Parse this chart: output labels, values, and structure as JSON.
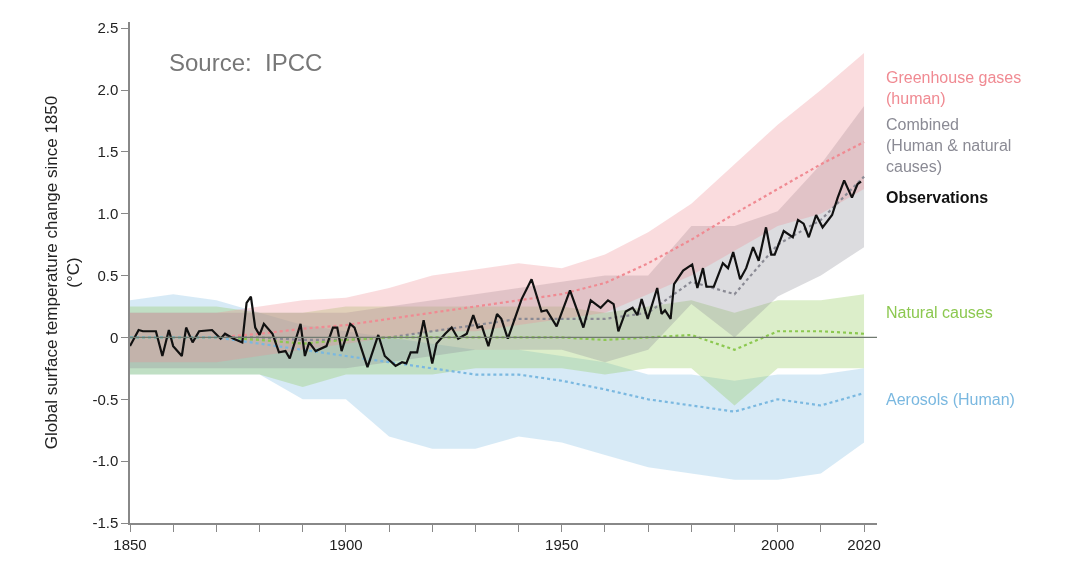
{
  "chart_data": {
    "type": "line",
    "ylabel": "Global surface temperature change since 1850\n(°C)",
    "annotations": [
      "Source:  IPCC"
    ],
    "xlim": [
      1850,
      2023
    ],
    "xticks": [
      1850,
      {
        "value": 1860,
        "label": null
      },
      {
        "value": 1870,
        "label": null
      },
      {
        "value": 1880,
        "label": null
      },
      {
        "value": 1890,
        "label": null
      },
      1900,
      {
        "value": 1910,
        "label": null
      },
      {
        "value": 1920,
        "label": null
      },
      {
        "value": 1930,
        "label": null
      },
      {
        "value": 1940,
        "label": null
      },
      1950,
      {
        "value": 1960,
        "label": null
      },
      {
        "value": 1970,
        "label": null
      },
      {
        "value": 1980,
        "label": null
      },
      {
        "value": 1990,
        "label": null
      },
      2000,
      {
        "value": 2010,
        "label": null
      },
      2020
    ],
    "ylim": [
      -1.5,
      2.55
    ],
    "yticks": [
      {
        "value": -1.5,
        "label": "-1.5"
      },
      {
        "value": -1.0,
        "label": "-1.0"
      },
      {
        "value": -0.5,
        "label": "-0.5"
      },
      0,
      0.5,
      {
        "value": 1.0,
        "label": "1.0"
      },
      1.5,
      {
        "value": 2.0,
        "label": "2.0"
      },
      2.5
    ],
    "legend": false,
    "ref_lines": [
      {
        "axis": "y",
        "value": 0,
        "color": "#707a70"
      }
    ],
    "series": [
      {
        "name": "Greenhouse gases\n(human)",
        "color": "#f08a92",
        "line_style": "dotted",
        "x": [
          1850,
          1860,
          1870,
          1880,
          1890,
          1900,
          1910,
          1920,
          1930,
          1940,
          1950,
          1960,
          1970,
          1980,
          1990,
          2000,
          2010,
          2020
        ],
        "values": [
          0,
          0,
          0,
          0.03,
          0.07,
          0.1,
          0.15,
          0.2,
          0.25,
          0.3,
          0.35,
          0.44,
          0.6,
          0.79,
          1.0,
          1.2,
          1.4,
          1.58
        ],
        "lower": [
          -0.2,
          -0.2,
          -0.2,
          -0.15,
          -0.1,
          -0.05,
          0,
          0.05,
          0.05,
          0.1,
          0.15,
          0.2,
          0.35,
          0.5,
          0.7,
          0.9,
          1.0,
          1.2
        ],
        "upper": [
          0.2,
          0.2,
          0.2,
          0.25,
          0.3,
          0.32,
          0.4,
          0.5,
          0.55,
          0.6,
          0.56,
          0.67,
          0.85,
          1.08,
          1.4,
          1.72,
          2.0,
          2.3
        ]
      },
      {
        "name": "Combined\n(Human & natural\ncauses)",
        "color": "#8a8a94",
        "line_style": "dotted",
        "x": [
          1850,
          1860,
          1870,
          1880,
          1890,
          1900,
          1910,
          1920,
          1930,
          1940,
          1950,
          1960,
          1970,
          1980,
          1990,
          2000,
          2010,
          2020
        ],
        "values": [
          0,
          0,
          0,
          0,
          -0.02,
          -0.02,
          0,
          0.05,
          0.1,
          0.15,
          0.15,
          0.15,
          0.2,
          0.45,
          0.35,
          0.75,
          0.95,
          1.3
        ],
        "lower": [
          -0.25,
          -0.25,
          -0.25,
          -0.25,
          -0.25,
          -0.25,
          -0.2,
          -0.15,
          -0.1,
          -0.1,
          -0.1,
          -0.2,
          -0.1,
          0.27,
          0.0,
          0.33,
          0.5,
          0.73
        ],
        "upper": [
          0.2,
          0.2,
          0.2,
          0.2,
          0.2,
          0.2,
          0.25,
          0.3,
          0.35,
          0.4,
          0.45,
          0.5,
          0.5,
          0.9,
          0.9,
          1.02,
          1.4,
          1.87
        ]
      },
      {
        "name": "Observations",
        "color": "#111111",
        "line_style": "solid",
        "x": [
          1850,
          1852,
          1853,
          1856,
          1857.5,
          1859,
          1860,
          1862,
          1863,
          1864.5,
          1866,
          1869,
          1871,
          1872,
          1874,
          1876,
          1877,
          1878,
          1879,
          1880,
          1881,
          1883,
          1884.5,
          1886,
          1887,
          1889.5,
          1890.5,
          1891.5,
          1893,
          1895.5,
          1897,
          1898,
          1899,
          1901,
          1902,
          1905,
          1907.5,
          1909,
          1911.5,
          1913,
          1914,
          1915,
          1916.5,
          1918,
          1920,
          1921,
          1923,
          1924.5,
          1926,
          1928,
          1929.5,
          1930.5,
          1931.5,
          1933,
          1935,
          1936,
          1937.5,
          1939,
          1940.7,
          1943,
          1945.3,
          1946.5,
          1948.8,
          1951.9,
          1955,
          1956.7,
          1959,
          1960.7,
          1962,
          1963.1,
          1964.8,
          1966.4,
          1967.5,
          1968.5,
          1969.9,
          1972.1,
          1973.1,
          1973.9,
          1975.2,
          1976,
          1978.1,
          1980.2,
          1981.4,
          1982.7,
          1983.5,
          1985.2,
          1987.3,
          1988.5,
          1989.7,
          1991.3,
          1992.7,
          1994.3,
          1995.6,
          1997.3,
          1998.5,
          1999.3,
          2001.4,
          2003.5,
          2004.7,
          2006,
          2007.2,
          2008.9,
          2010.4,
          2012.6,
          2013.9,
          2015.4,
          2017.2,
          2018.5,
          2019.3
        ],
        "values": [
          -0.07,
          0.06,
          0.05,
          0.05,
          -0.15,
          0.06,
          -0.07,
          -0.15,
          0.08,
          -0.04,
          0.05,
          0.06,
          -0.01,
          0.03,
          -0.01,
          -0.04,
          0.28,
          0.33,
          0.08,
          0.02,
          0.11,
          0.03,
          -0.12,
          -0.11,
          -0.17,
          0.11,
          -0.15,
          -0.04,
          -0.11,
          -0.07,
          0.08,
          0.08,
          -0.11,
          0.11,
          0.08,
          -0.24,
          0.02,
          -0.15,
          -0.23,
          -0.2,
          -0.21,
          -0.12,
          -0.12,
          0.14,
          -0.21,
          -0.05,
          0.03,
          0.08,
          -0.01,
          0.03,
          0.18,
          0.08,
          0.09,
          -0.07,
          0.19,
          0.15,
          -0.01,
          0.14,
          0.31,
          0.47,
          0.21,
          0.22,
          0.09,
          0.38,
          0.08,
          0.3,
          0.24,
          0.3,
          0.27,
          0.05,
          0.21,
          0.24,
          0.18,
          0.31,
          0.15,
          0.4,
          0.19,
          0.22,
          0.15,
          0.43,
          0.54,
          0.59,
          0.4,
          0.56,
          0.41,
          0.41,
          0.6,
          0.56,
          0.69,
          0.47,
          0.56,
          0.73,
          0.62,
          0.89,
          0.67,
          0.67,
          0.86,
          0.81,
          0.95,
          0.92,
          0.81,
          0.99,
          0.89,
          0.99,
          1.13,
          1.27,
          1.13,
          1.24,
          1.26
        ]
      },
      {
        "name": "Natural causes",
        "color": "#8cc850",
        "line_style": "dotted",
        "x": [
          1850,
          1860,
          1870,
          1880,
          1890,
          1900,
          1910,
          1920,
          1930,
          1940,
          1950,
          1960,
          1970,
          1980,
          1990,
          2000,
          2010,
          2020
        ],
        "values": [
          0,
          0,
          0,
          -0.02,
          -0.05,
          -0.02,
          0,
          0,
          0,
          0,
          0,
          -0.02,
          0,
          0.02,
          -0.1,
          0.05,
          0.05,
          0.03
        ],
        "lower": [
          -0.3,
          -0.3,
          -0.3,
          -0.3,
          -0.4,
          -0.3,
          -0.3,
          -0.3,
          -0.25,
          -0.25,
          -0.25,
          -0.3,
          -0.25,
          -0.25,
          -0.55,
          -0.25,
          -0.25,
          -0.25
        ],
        "upper": [
          0.25,
          0.25,
          0.25,
          0.2,
          0.2,
          0.25,
          0.25,
          0.25,
          0.25,
          0.25,
          0.25,
          0.2,
          0.25,
          0.3,
          0.2,
          0.3,
          0.3,
          0.35
        ]
      },
      {
        "name": "Aerosols (Human)",
        "color": "#7ab8e0",
        "line_style": "dotted",
        "x": [
          1850,
          1860,
          1870,
          1880,
          1890,
          1900,
          1910,
          1920,
          1930,
          1940,
          1950,
          1960,
          1970,
          1980,
          1990,
          2000,
          2010,
          2020
        ],
        "values": [
          0,
          0,
          0,
          -0.05,
          -0.1,
          -0.15,
          -0.2,
          -0.25,
          -0.3,
          -0.3,
          -0.35,
          -0.42,
          -0.5,
          -0.55,
          -0.6,
          -0.5,
          -0.55,
          -0.45
        ],
        "lower": [
          -0.3,
          -0.3,
          -0.3,
          -0.3,
          -0.5,
          -0.5,
          -0.8,
          -0.9,
          -0.9,
          -0.8,
          -0.85,
          -0.95,
          -1.05,
          -1.1,
          -1.15,
          -1.15,
          -1.1,
          -0.85
        ],
        "upper": [
          0.3,
          0.35,
          0.3,
          0.2,
          0.1,
          0.05,
          0,
          -0.05,
          -0.1,
          -0.1,
          -0.15,
          -0.2,
          -0.3,
          -0.3,
          -0.35,
          -0.3,
          -0.3,
          -0.25
        ]
      }
    ]
  }
}
